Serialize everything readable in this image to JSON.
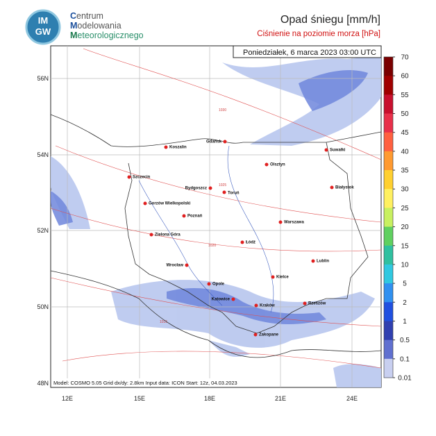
{
  "logo": {
    "line1": "IM",
    "line2": "GW"
  },
  "header": {
    "brand": [
      "Centrum",
      "Modelowania",
      "Meteorologicznego"
    ],
    "title": "Opad śniegu [mm/h]",
    "subtitle": "Ciśnienie na poziomie morza [hPa]"
  },
  "date": "Poniedziałek, 6 marca 2023 03:00 UTC",
  "model_info": "Model: COSMO 5.05  Grid dx/dy: 2.8km  Input data: ICON  Start: 12z, 04.03.2023",
  "lat_labels": [
    "56N",
    "54N",
    "52N",
    "50N",
    "48N"
  ],
  "lon_labels": [
    "12E",
    "15E",
    "18E",
    "21E",
    "24E"
  ],
  "isobar_labels": [
    "1030",
    "1025",
    "1020",
    "1015"
  ],
  "cities": [
    "Koszalin",
    "Gdańsk",
    "Suwałki",
    "Olsztyn",
    "Szczecin",
    "Białystok",
    "Bydgoszcz",
    "Toruń",
    "Gorzów Wielkopolski",
    "Poznań",
    "Warszawa",
    "Zielona Góra",
    "Łódź",
    "Lublin",
    "Wrocław",
    "Kielce",
    "Opole",
    "Katowice",
    "Kraków",
    "Rzeszów",
    "Zakopane"
  ],
  "legend": {
    "labels": [
      "70",
      "60",
      "55",
      "50",
      "45",
      "40",
      "35",
      "30",
      "25",
      "20",
      "15",
      "10",
      "5",
      "2",
      "1",
      "0.5",
      "0.1",
      "0.01"
    ],
    "colors": [
      "#7a0000",
      "#a00000",
      "#c8102e",
      "#e8304a",
      "#ff6040",
      "#ff9a30",
      "#ffd030",
      "#fff060",
      "#c8f060",
      "#60d060",
      "#30c0a0",
      "#30c8e0",
      "#3090f0",
      "#2050e0",
      "#3040b0",
      "#6070d0",
      "#c8cff0"
    ]
  }
}
